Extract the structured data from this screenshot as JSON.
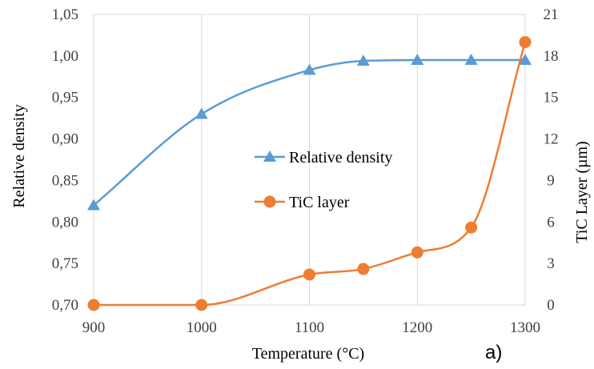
{
  "chart_data": {
    "type": "line",
    "x": [
      900,
      1000,
      1100,
      1150,
      1200,
      1250,
      1300
    ],
    "xlabel": "Temperature (°C)",
    "xlim": [
      900,
      1300
    ],
    "xticks": [
      "900",
      "1000",
      "1100",
      "1200",
      "1300"
    ],
    "ylabel": "Relative density",
    "ylim": [
      0.7,
      1.05
    ],
    "yticks": [
      "0,70",
      "0,75",
      "0,80",
      "0,85",
      "0,90",
      "0,95",
      "1,00",
      "1,05"
    ],
    "y2label": "TiC Layer (µm)",
    "y2lim": [
      0,
      21
    ],
    "y2ticks": [
      "0",
      "3",
      "6",
      "9",
      "12",
      "15",
      "18",
      "21"
    ],
    "grid": "vertical",
    "legend_position": "center",
    "panel_label": "a)",
    "series": [
      {
        "name": "Relative density",
        "axis": "left",
        "marker": "triangle",
        "color": "#5b9bd5",
        "values": [
          0.82,
          0.93,
          0.983,
          0.994,
          0.995,
          0.995,
          0.995
        ]
      },
      {
        "name": "TiC layer",
        "axis": "right",
        "marker": "circle",
        "color": "#ed7d31",
        "values": [
          0,
          0,
          2.2,
          2.6,
          3.8,
          5.6,
          19
        ]
      }
    ]
  }
}
